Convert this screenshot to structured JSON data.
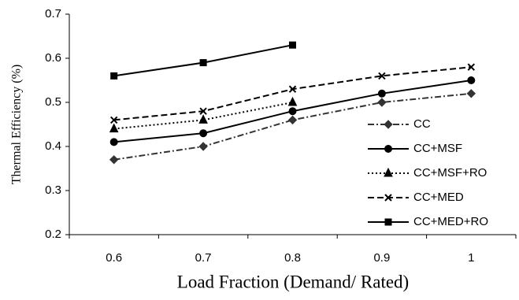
{
  "chart_data": {
    "type": "line",
    "x_label": "Load Fraction (Demand/ Rated)",
    "y_label": "Thermal Efficiency (%)",
    "categories": [
      "0.6",
      "0.7",
      "0.8",
      "0.9",
      "1"
    ],
    "ylim": [
      0.2,
      0.7
    ],
    "yticks": [
      0.2,
      0.3,
      0.4,
      0.5,
      0.6,
      0.7
    ],
    "grid": false,
    "legend_position": "right",
    "series": [
      {
        "name": "CC",
        "color": "#333333",
        "marker": "diamond",
        "dash": "dashdot",
        "values": [
          0.37,
          0.4,
          0.46,
          0.5,
          0.52
        ]
      },
      {
        "name": "CC+MSF",
        "color": "#000000",
        "marker": "circle",
        "dash": "solid",
        "values": [
          0.41,
          0.43,
          0.48,
          0.52,
          0.55
        ]
      },
      {
        "name": "CC+MSF+RO",
        "color": "#000000",
        "marker": "triangle",
        "dash": "dotted",
        "values": [
          0.44,
          0.46,
          0.5,
          null,
          null
        ]
      },
      {
        "name": "CC+MED",
        "color": "#000000",
        "marker": "x",
        "dash": "dashed",
        "values": [
          0.46,
          0.48,
          0.53,
          0.56,
          0.58
        ]
      },
      {
        "name": "CC+MED+RO",
        "color": "#000000",
        "marker": "square",
        "dash": "solid",
        "values": [
          0.56,
          0.59,
          0.63,
          null,
          null
        ]
      }
    ]
  }
}
